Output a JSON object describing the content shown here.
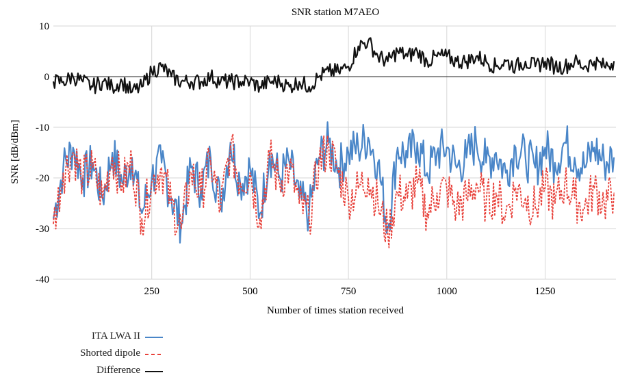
{
  "chart_data": {
    "type": "line",
    "title": "SNR station M7AEO",
    "xlabel": "Number of times station received",
    "ylabel": "SNR [dB/dBm]",
    "xlim": [
      0,
      1430
    ],
    "ylim": [
      -40,
      10
    ],
    "xticks": [
      250,
      500,
      750,
      1000,
      1250
    ],
    "yticks": [
      10,
      0,
      -10,
      -20,
      -30,
      -40
    ],
    "grid": true,
    "legend_position": "bottom-left",
    "series": [
      {
        "name": "ITA LWA II",
        "color": "#4a86c8",
        "style": "solid",
        "x": [
          0,
          25,
          50,
          75,
          100,
          125,
          150,
          175,
          200,
          225,
          250,
          275,
          300,
          325,
          350,
          375,
          400,
          425,
          450,
          475,
          500,
          525,
          550,
          575,
          600,
          625,
          650,
          675,
          700,
          725,
          750,
          775,
          800,
          825,
          850,
          875,
          900,
          925,
          950,
          975,
          1000,
          1025,
          1050,
          1075,
          1100,
          1125,
          1150,
          1175,
          1200,
          1225,
          1250,
          1275,
          1300,
          1325,
          1350,
          1375,
          1400,
          1425
        ],
        "values": [
          -28,
          -18,
          -14,
          -20,
          -17,
          -24,
          -15,
          -21,
          -16,
          -27,
          -20,
          -17,
          -24,
          -29,
          -18,
          -22,
          -16,
          -25,
          -13,
          -21,
          -18,
          -27,
          -15,
          -20,
          -17,
          -24,
          -27,
          -16,
          -13,
          -18,
          -15,
          -14,
          -12,
          -17,
          -30,
          -14,
          -16,
          -13,
          -19,
          -15,
          -14,
          -18,
          -16,
          -13,
          -17,
          -15,
          -19,
          -14,
          -16,
          -18,
          -14,
          -17,
          -13,
          -16,
          -18,
          -14,
          -17,
          -16
        ]
      },
      {
        "name": "Shorted dipole",
        "color": "#e8413a",
        "style": "dashed",
        "x": [
          0,
          25,
          50,
          75,
          100,
          125,
          150,
          175,
          200,
          225,
          250,
          275,
          300,
          325,
          350,
          375,
          400,
          425,
          450,
          475,
          500,
          525,
          550,
          575,
          600,
          625,
          650,
          675,
          700,
          725,
          750,
          775,
          800,
          825,
          850,
          875,
          900,
          925,
          950,
          975,
          1000,
          1025,
          1050,
          1075,
          1100,
          1125,
          1150,
          1175,
          1200,
          1225,
          1250,
          1275,
          1300,
          1325,
          1350,
          1375,
          1400,
          1425
        ],
        "values": [
          -29,
          -19,
          -15,
          -20,
          -18,
          -24,
          -16,
          -21,
          -17,
          -28,
          -21,
          -18,
          -25,
          -30,
          -19,
          -23,
          -17,
          -26,
          -14,
          -21,
          -19,
          -28,
          -16,
          -21,
          -18,
          -25,
          -28,
          -17,
          -14,
          -19,
          -24,
          -22,
          -20,
          -25,
          -31,
          -23,
          -24,
          -21,
          -27,
          -23,
          -22,
          -26,
          -24,
          -21,
          -25,
          -23,
          -27,
          -22,
          -24,
          -26,
          -22,
          -25,
          -21,
          -24,
          -26,
          -22,
          -25,
          -23
        ]
      },
      {
        "name": "Difference",
        "color": "#111111",
        "style": "solid",
        "x": [
          0,
          25,
          50,
          75,
          100,
          125,
          150,
          175,
          200,
          225,
          250,
          275,
          300,
          325,
          350,
          375,
          400,
          425,
          450,
          475,
          500,
          525,
          550,
          575,
          600,
          625,
          650,
          675,
          700,
          725,
          750,
          775,
          800,
          825,
          850,
          875,
          900,
          925,
          950,
          975,
          1000,
          1025,
          1050,
          1075,
          1100,
          1125,
          1150,
          1175,
          1200,
          1225,
          1250,
          1275,
          1300,
          1325,
          1350,
          1375,
          1400,
          1425
        ],
        "values": [
          -1,
          -1,
          0,
          -1,
          -2,
          -1,
          -2,
          -1,
          -3,
          -2,
          1,
          2,
          0,
          -1,
          -1,
          -1,
          0,
          -1,
          -1,
          -1,
          -1,
          -2,
          -1,
          -1,
          -2,
          -1,
          -2,
          0,
          1,
          1,
          2,
          6,
          7,
          4,
          3,
          5,
          4,
          5,
          3,
          4,
          4,
          3,
          3,
          4,
          3,
          2,
          3,
          2,
          3,
          2,
          3,
          2,
          2,
          3,
          2,
          3,
          2,
          3
        ]
      }
    ]
  }
}
